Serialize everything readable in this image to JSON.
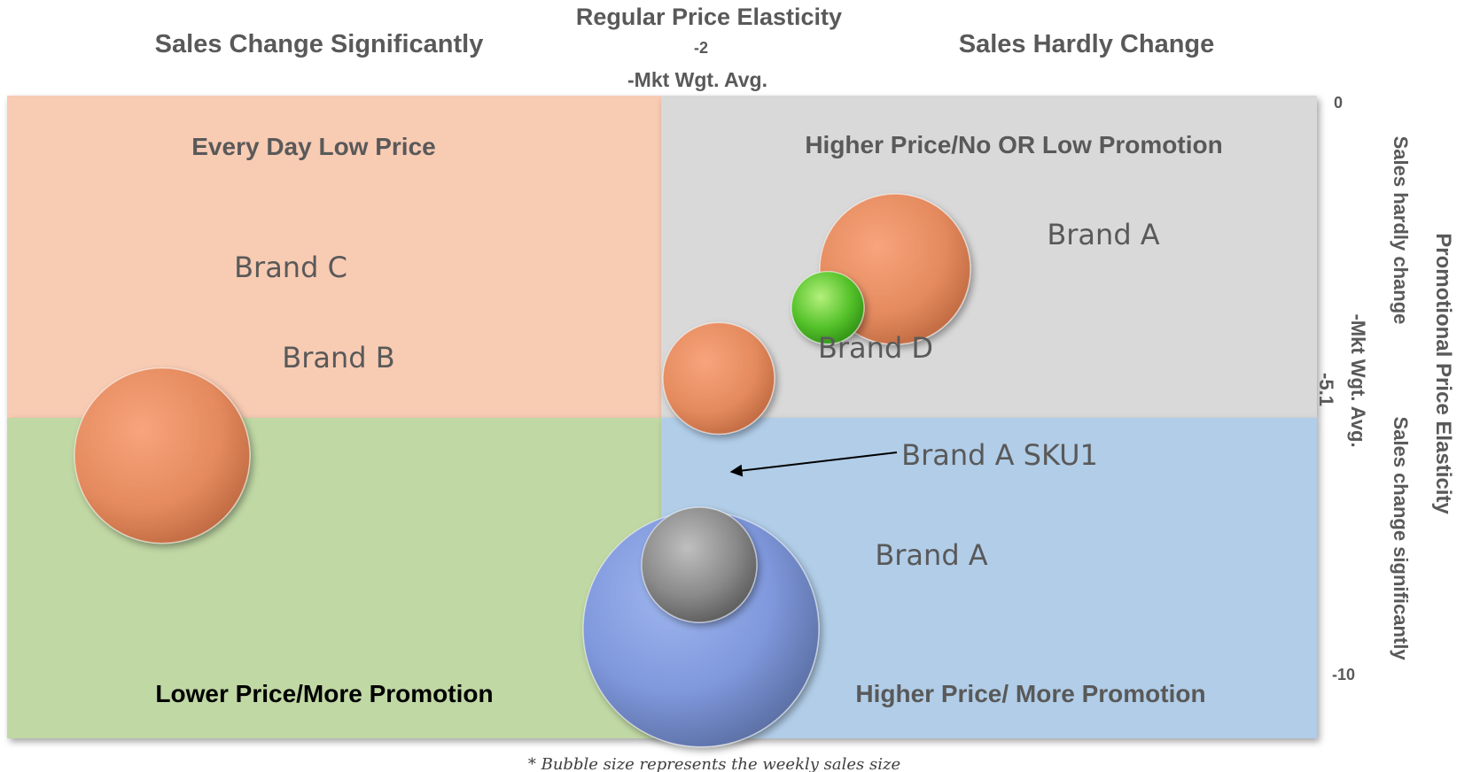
{
  "chart_data": {
    "type": "bubble quadrant",
    "x_axis": {
      "title": "Regular Price Elasticity",
      "reference_value": "-2",
      "reference_label": "-Mkt Wgt. Avg.",
      "left_label": "Sales Change Significantly",
      "right_label": "Sales Hardly Change"
    },
    "y_axis": {
      "title": "Promotional Price Elasticity",
      "ticks": [
        "0",
        "-5.1",
        "-10"
      ],
      "reference_label": "-Mkt Wgt. Avg.",
      "top_label": "Sales hardly change",
      "bottom_label": "Sales change significantly",
      "range": [
        0,
        -10
      ]
    },
    "quadrants": [
      {
        "label": "Every Day Low Price",
        "color": "#f8cbb3"
      },
      {
        "label": "Higher Price/No OR Low Promotion",
        "color": "#d9d9d9"
      },
      {
        "label": "Lower Price/More Promotion",
        "color": "#c0d8a4"
      },
      {
        "label": "Higher Price/ More Promotion",
        "color": "#b1cde8"
      }
    ],
    "brand_labels": [
      "Brand C",
      "Brand B",
      "Brand A",
      "Brand D",
      "Brand A SKU1",
      "Brand A"
    ],
    "bubbles": [
      {
        "y": -5.6,
        "color": "orange"
      },
      {
        "y": -4.4,
        "color": "orange"
      },
      {
        "y": -2.7,
        "color": "orange"
      },
      {
        "y": -3.3,
        "color": "green"
      },
      {
        "y": -8.3,
        "color": "blue"
      },
      {
        "y": -7.3,
        "color": "gray"
      }
    ],
    "footnote": "* Bubble size represents the weekly sales size"
  }
}
